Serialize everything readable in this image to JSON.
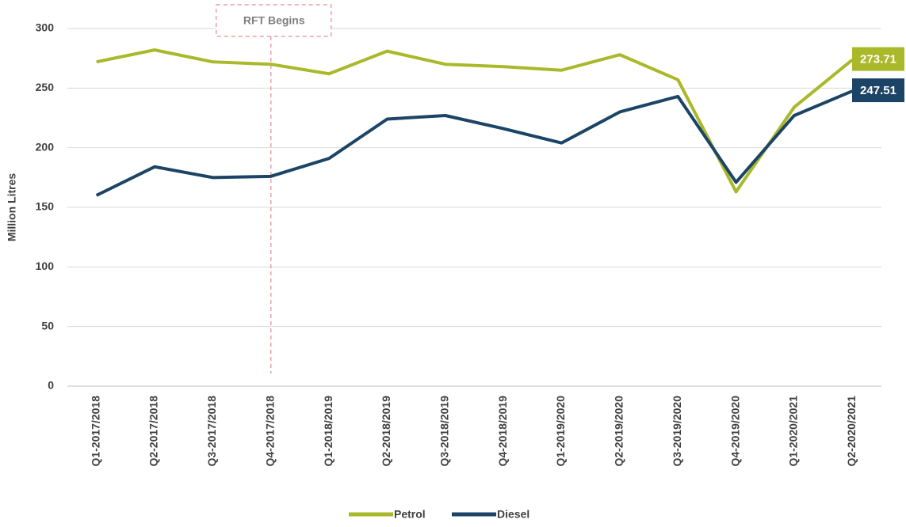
{
  "chart_data": {
    "type": "line",
    "y_label": "Million Litres",
    "categories": [
      "Q1-2017/2018",
      "Q2-2017/2018",
      "Q3-2017/2018",
      "Q4-2017/2018",
      "Q1-2018/2019",
      "Q2-2018/2019",
      "Q3-2018/2019",
      "Q4-2018/2019",
      "Q1-2019/2020",
      "Q2-2019/2020",
      "Q3-2019/2020",
      "Q4-2019/2020",
      "Q1-2020/2021",
      "Q2-2020/2021"
    ],
    "series": [
      {
        "name": "Petrol",
        "color": "#a9b92a",
        "values": [
          272,
          282,
          272,
          270,
          262,
          281,
          270,
          268,
          265,
          278,
          257,
          163,
          234,
          273.71
        ]
      },
      {
        "name": "Diesel",
        "color": "#1c4466",
        "values": [
          160,
          184,
          175,
          176,
          191,
          224,
          227,
          216,
          204,
          230,
          243,
          171,
          227,
          247.51
        ]
      }
    ],
    "ylim": [
      0,
      300
    ],
    "yticks": [
      0,
      50,
      100,
      150,
      200,
      250,
      300
    ],
    "grid": true,
    "label_last_value": true,
    "legend": "bottom",
    "annotations": [
      {
        "text": "RFT Begins",
        "category_index": 3
      }
    ]
  }
}
